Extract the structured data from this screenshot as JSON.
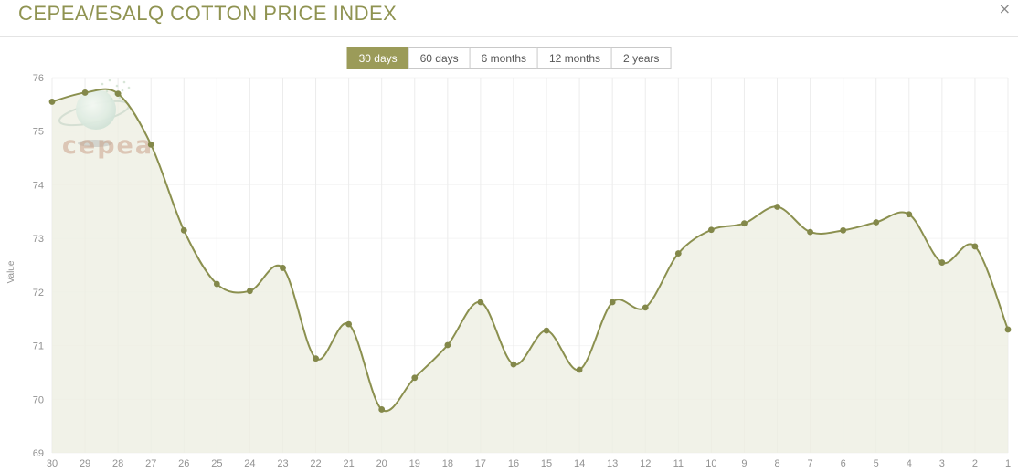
{
  "window": {
    "close_label": "×"
  },
  "header": {
    "title": "CEPEA/ESALQ COTTON PRICE INDEX",
    "title_color": "#8f9351"
  },
  "range_tabs": [
    {
      "label": "30 days",
      "active": true
    },
    {
      "label": "60 days",
      "active": false
    },
    {
      "label": "6 months",
      "active": false
    },
    {
      "label": "12 months",
      "active": false
    },
    {
      "label": "2 years",
      "active": false
    }
  ],
  "watermark": {
    "text": "cepea"
  },
  "chart_data": {
    "type": "area",
    "title": "CEPEA/ESALQ COTTON PRICE INDEX",
    "xlabel": "",
    "ylabel": "Value",
    "categories": [
      "30",
      "29",
      "28",
      "27",
      "26",
      "25",
      "24",
      "23",
      "22",
      "21",
      "20",
      "19",
      "18",
      "17",
      "16",
      "15",
      "14",
      "13",
      "12",
      "11",
      "10",
      "9",
      "8",
      "7",
      "6",
      "5",
      "4",
      "3",
      "2",
      "1"
    ],
    "values": [
      75.55,
      75.72,
      75.7,
      74.75,
      73.15,
      72.15,
      72.02,
      72.45,
      70.76,
      71.4,
      69.81,
      70.4,
      71.01,
      71.81,
      70.65,
      71.28,
      70.55,
      71.81,
      71.71,
      72.72,
      73.16,
      73.28,
      73.59,
      73.12,
      73.15,
      73.3,
      73.45,
      72.55,
      72.85,
      71.3
    ],
    "ylim": [
      69,
      76
    ],
    "yticks": [
      76,
      75,
      74,
      73,
      72,
      71,
      70,
      69
    ],
    "grid": true,
    "legend": false,
    "line_color": "#8b904f",
    "marker_color": "#83884a",
    "fill_color": "rgba(238,239,226,0.8)",
    "grid_v_color": "#ececec",
    "grid_h_color": "#f4f4f4",
    "tick_color": "#919191"
  }
}
